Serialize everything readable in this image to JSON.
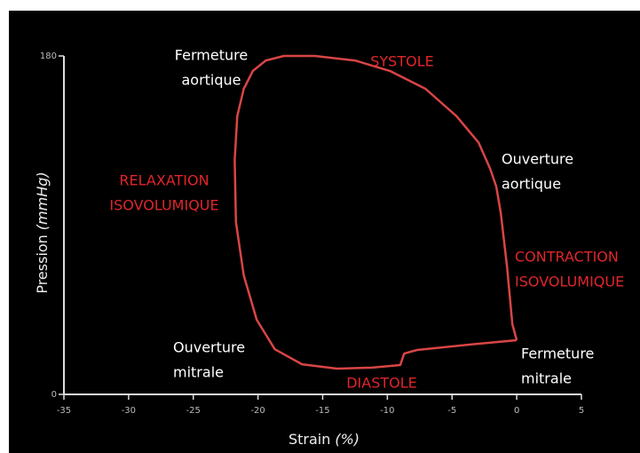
{
  "chart_data": {
    "type": "line",
    "xlabel": {
      "text": "Strain",
      "unit": "(%)"
    },
    "ylabel": {
      "text": "Pression",
      "unit": "(mmHg)"
    },
    "x": [
      0,
      -0.34,
      -0.75,
      -1.23,
      -1.58,
      -2.05,
      -2.95,
      -4.66,
      -7.05,
      -9.8,
      -12.5,
      -15.6,
      -18.0,
      -19.4,
      -20.4,
      -21.1,
      -21.6,
      -21.8,
      -21.7,
      -21.1,
      -20.1,
      -18.7,
      -16.6,
      -13.9,
      -11.2,
      -9.0,
      -8.7,
      -7.7,
      -3.6,
      0
    ],
    "series": [
      {
        "color": "#d94545",
        "values": [
          28.8,
          37.3,
          68,
          96.4,
          110.5,
          120,
          134,
          148,
          162.5,
          172,
          177.6,
          180,
          180,
          177.6,
          172,
          162.5,
          148,
          124.7,
          91.6,
          63.3,
          39.7,
          24,
          16,
          13.7,
          14.2,
          15.6,
          21.7,
          23.6,
          26.5,
          28.8
        ]
      }
    ],
    "xlim": [
      -35,
      5
    ],
    "ylim": [
      0,
      180
    ],
    "xticks": [
      -35,
      -30,
      -25,
      -20,
      -15,
      -10,
      -5,
      0,
      5
    ],
    "yticks": [
      0,
      180
    ],
    "annotations": [
      {
        "lines": [
          "Fermeture",
          "aortique"
        ],
        "color": "#ffffff"
      },
      {
        "lines": [
          "SYSTOLE"
        ],
        "color": "#e0262b"
      },
      {
        "lines": [
          "Ouverture",
          "aortique"
        ],
        "color": "#ffffff"
      },
      {
        "lines": [
          "RELAXATION",
          "ISOVOLUMIQUE"
        ],
        "color": "#e0262b"
      },
      {
        "lines": [
          "CONTRACTION",
          "ISOVOLUMIQUE"
        ],
        "color": "#e0262b"
      },
      {
        "lines": [
          "Ouverture",
          "mitrale"
        ],
        "color": "#ffffff"
      },
      {
        "lines": [
          "DIASTOLE"
        ],
        "color": "#e0262b"
      },
      {
        "lines": [
          "Fermeture",
          "mitrale"
        ],
        "color": "#ffffff"
      }
    ]
  }
}
